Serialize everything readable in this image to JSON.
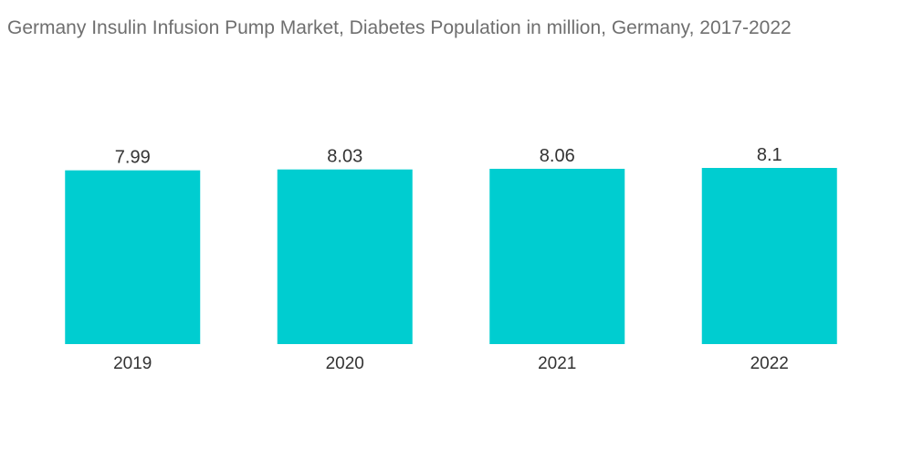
{
  "title": "Germany Insulin Infusion Pump Market, Diabetes Population in million, Germany, 2017-2022",
  "colors": {
    "bar": "#00cdd0",
    "title": "#6f6f6f",
    "text": "#333333",
    "baseline": "#c8c8c8"
  },
  "chart_data": {
    "type": "bar",
    "title": "Germany Insulin Infusion Pump Market, Diabetes Population in million, Germany, 2017-2022",
    "xlabel": "",
    "ylabel": "",
    "categories": [
      "2019",
      "2020",
      "2021",
      "2022"
    ],
    "values": [
      7.99,
      8.03,
      8.06,
      8.1
    ],
    "value_labels": [
      "7.99",
      "8.03",
      "8.06",
      "8.1"
    ],
    "ylim": [
      0,
      8.1
    ],
    "grid": false,
    "legend": "none"
  }
}
